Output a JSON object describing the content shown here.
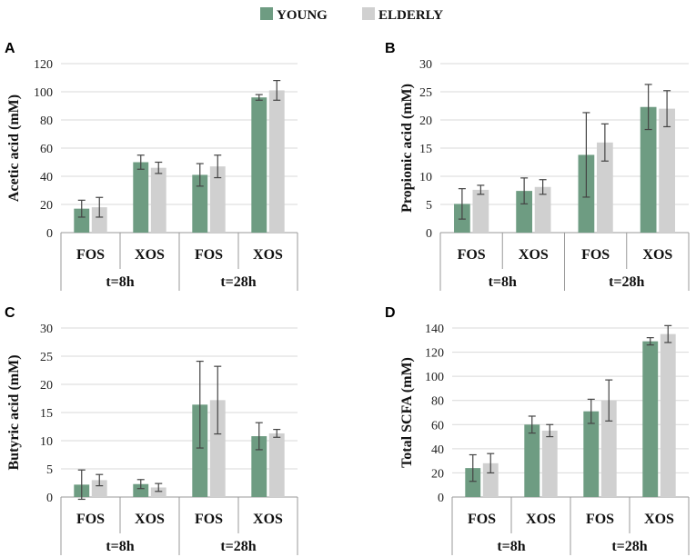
{
  "legend": {
    "series": [
      "YOUNG",
      "ELDERLY"
    ]
  },
  "colors": {
    "young": "#6e9c82",
    "elderly": "#d0d0d0",
    "grid": "#d9d9d9",
    "axis": "#999999",
    "error": "#444444"
  },
  "chart_data": [
    {
      "panel": "A",
      "type": "bar",
      "ylabel": "Acetic acid (mM)",
      "ylim": [
        0,
        120
      ],
      "yticks": [
        0,
        20,
        40,
        60,
        80,
        100,
        120
      ],
      "categories": [
        "FOS",
        "XOS",
        "FOS",
        "XOS"
      ],
      "groups": [
        {
          "label": "t=8h",
          "span": 2
        },
        {
          "label": "t=28h",
          "span": 2
        }
      ],
      "series": [
        {
          "name": "YOUNG",
          "values": [
            17,
            50,
            41,
            96
          ],
          "errors": [
            6,
            5,
            8,
            2
          ]
        },
        {
          "name": "ELDERLY",
          "values": [
            18,
            46,
            47,
            101
          ],
          "errors": [
            7,
            4,
            8,
            7
          ]
        }
      ]
    },
    {
      "panel": "B",
      "type": "bar",
      "ylabel": "Propionic acid (mM)",
      "ylim": [
        0,
        30
      ],
      "yticks": [
        0,
        5,
        10,
        15,
        20,
        25,
        30
      ],
      "categories": [
        "FOS",
        "XOS",
        "FOS",
        "XOS"
      ],
      "groups": [
        {
          "label": "t=8h",
          "span": 2
        },
        {
          "label": "t=28h",
          "span": 2
        }
      ],
      "series": [
        {
          "name": "YOUNG",
          "values": [
            5.1,
            7.4,
            13.8,
            22.3
          ],
          "errors": [
            2.7,
            2.3,
            7.5,
            4.0
          ]
        },
        {
          "name": "ELDERLY",
          "values": [
            7.6,
            8.1,
            16.0,
            22.0
          ],
          "errors": [
            0.8,
            1.3,
            3.3,
            3.2
          ]
        }
      ]
    },
    {
      "panel": "C",
      "type": "bar",
      "ylabel": "Butyric acid (mM)",
      "ylim": [
        0,
        30
      ],
      "yticks": [
        0,
        5,
        10,
        15,
        20,
        25,
        30
      ],
      "categories": [
        "FOS",
        "XOS",
        "FOS",
        "XOS"
      ],
      "groups": [
        {
          "label": "t=8h",
          "span": 2
        },
        {
          "label": "t=28h",
          "span": 2
        }
      ],
      "series": [
        {
          "name": "YOUNG",
          "values": [
            2.2,
            2.3,
            16.4,
            10.8
          ],
          "errors": [
            2.6,
            0.8,
            7.7,
            2.4
          ]
        },
        {
          "name": "ELDERLY",
          "values": [
            3.0,
            1.7,
            17.2,
            11.3
          ],
          "errors": [
            1.0,
            0.7,
            6.0,
            0.7
          ]
        }
      ]
    },
    {
      "panel": "D",
      "type": "bar",
      "ylabel": "Total SCFA (mM)",
      "ylim": [
        0,
        140
      ],
      "yticks": [
        0,
        20,
        40,
        60,
        80,
        100,
        120,
        140
      ],
      "categories": [
        "FOS",
        "XOS",
        "FOS",
        "XOS"
      ],
      "groups": [
        {
          "label": "t=8h",
          "span": 2
        },
        {
          "label": "t=28h",
          "span": 2
        }
      ],
      "series": [
        {
          "name": "YOUNG",
          "values": [
            24,
            60,
            71,
            129
          ],
          "errors": [
            11,
            7,
            10,
            3
          ]
        },
        {
          "name": "ELDERLY",
          "values": [
            28,
            55,
            80,
            135
          ],
          "errors": [
            8,
            5,
            17,
            7
          ]
        }
      ]
    }
  ]
}
